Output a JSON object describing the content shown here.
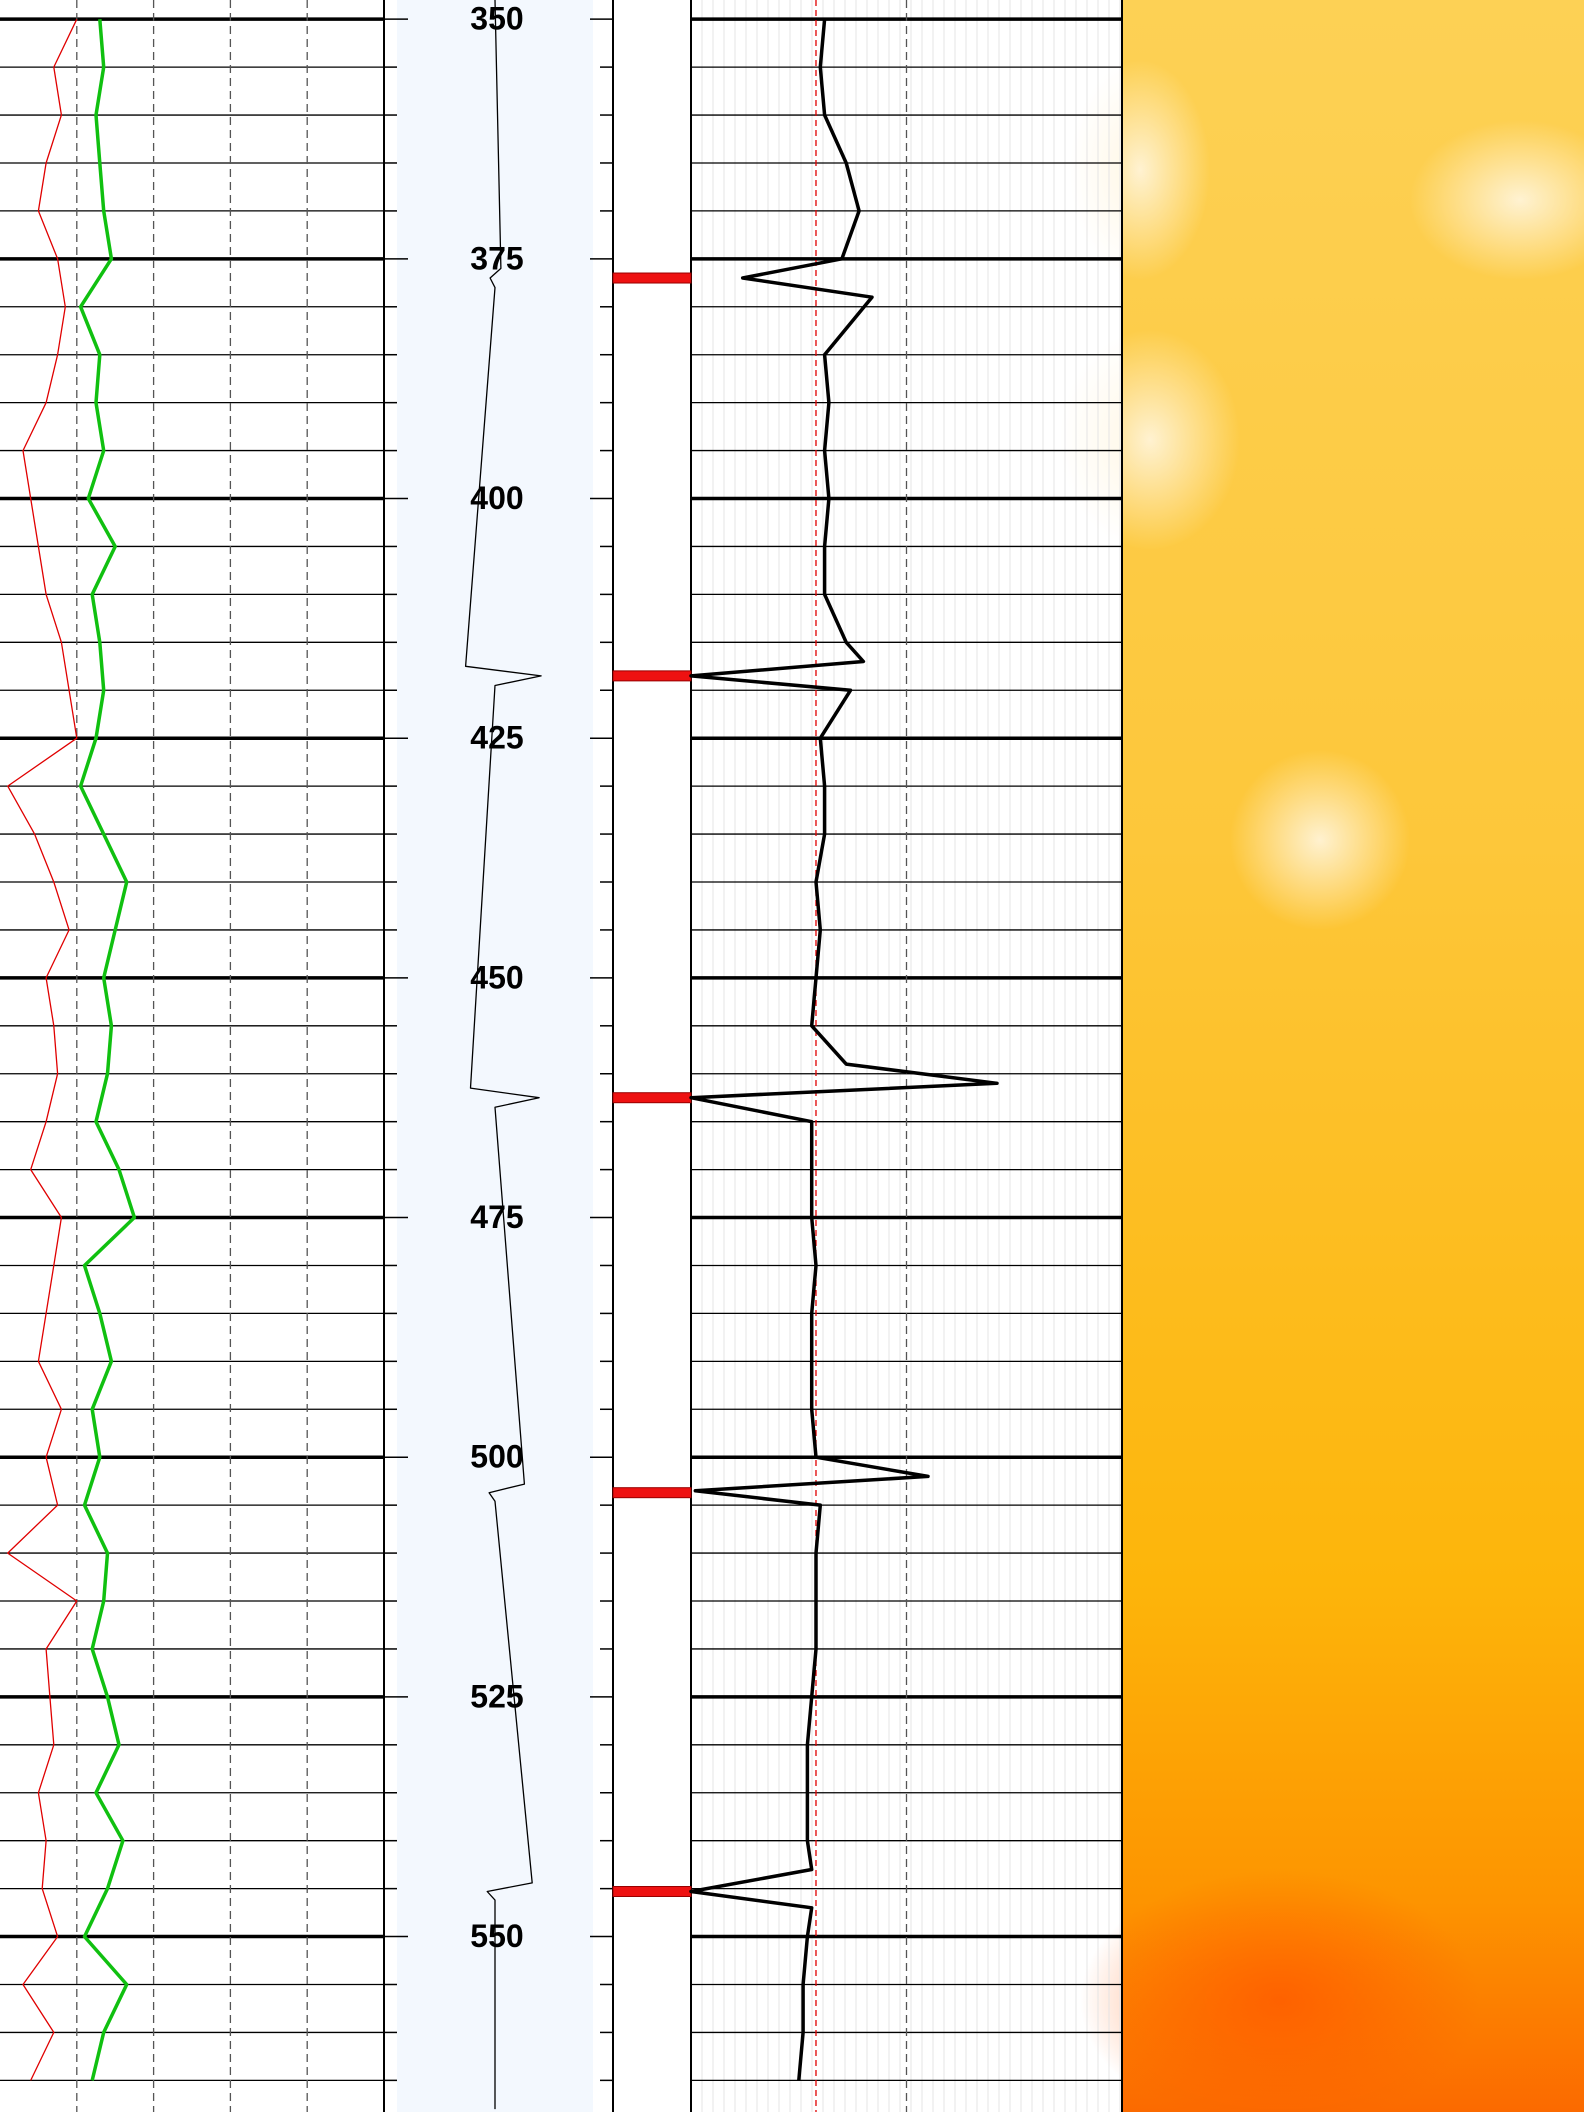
{
  "chart_data": {
    "type": "welllog",
    "ylim": [
      348,
      568.3
    ],
    "yticks": [
      350,
      375,
      400,
      425,
      450,
      475,
      500,
      525,
      550
    ],
    "yminor": [
      355,
      360,
      365,
      370,
      380,
      385,
      390,
      395,
      405,
      410,
      415,
      420,
      430,
      435,
      440,
      445,
      455,
      460,
      465,
      470,
      480,
      485,
      490,
      495,
      505,
      510,
      515,
      520,
      530,
      535,
      540,
      545,
      555,
      560,
      565
    ],
    "tracks": [
      {
        "xlim": [
          0,
          100
        ],
        "xticks": [
          20,
          40,
          60,
          80
        ],
        "series": [
          {
            "color": "#e00000",
            "depth": [
              350,
              355,
              360,
              365,
              370,
              375,
              380,
              385,
              390,
              395,
              400,
              405,
              410,
              415,
              420,
              425,
              430,
              435,
              440,
              445,
              450,
              455,
              460,
              465,
              470,
              475,
              480,
              485,
              490,
              495,
              500,
              505,
              510,
              515,
              520,
              525,
              530,
              535,
              540,
              545,
              550,
              555,
              560,
              565
            ],
            "values": [
              20,
              14,
              16,
              12,
              10,
              15,
              17,
              15,
              12,
              6,
              8,
              10,
              12,
              16,
              18,
              20,
              2,
              9,
              14,
              18,
              12,
              14,
              15,
              12,
              8,
              16,
              14,
              12,
              10,
              16,
              12,
              15,
              2,
              20,
              12,
              13,
              14,
              10,
              12,
              11,
              15,
              6,
              14,
              8
            ]
          },
          {
            "color": "#10c010",
            "depth": [
              350,
              355,
              360,
              365,
              370,
              375,
              380,
              385,
              390,
              395,
              400,
              405,
              410,
              415,
              420,
              425,
              430,
              435,
              440,
              445,
              450,
              455,
              460,
              465,
              470,
              475,
              480,
              485,
              490,
              495,
              500,
              505,
              510,
              515,
              520,
              525,
              530,
              535,
              540,
              545,
              550,
              555,
              560,
              565
            ],
            "values": [
              26,
              27,
              25,
              26,
              27,
              29,
              21,
              26,
              25,
              27,
              23,
              30,
              24,
              26,
              27,
              25,
              21,
              27,
              33,
              30,
              27,
              29,
              28,
              25,
              31,
              35,
              22,
              26,
              29,
              24,
              26,
              22,
              28,
              27,
              24,
              28,
              31,
              25,
              32,
              28,
              22,
              33,
              27,
              24
            ]
          }
        ]
      },
      {
        "xlim": [
          -100,
          100
        ],
        "series": [
          {
            "color": "#000000",
            "depth": [
              348,
              376,
              377,
              378,
              417.5,
              418.5,
              419.5,
              461.5,
              462.5,
              463.5,
              502.8,
              503.7,
              504.6,
              544.4,
              545.3,
              546.2,
              568
            ],
            "values": [
              0,
              6,
              -5,
              0,
              -30,
              47,
              0,
              -25,
              45,
              0,
              30,
              -6,
              0,
              38,
              -8,
              0,
              0
            ]
          }
        ]
      },
      {
        "markers": [
          377,
          418.5,
          462.5,
          503.7,
          545.3
        ],
        "color": "#ee1111"
      },
      {
        "xlim": [
          0,
          100
        ],
        "xticks": [
          50
        ],
        "reference": 29,
        "series": [
          {
            "color": "#000000",
            "depth": [
              350,
              355,
              360,
              365,
              370,
              375,
              377,
              379,
              385,
              390,
              395,
              400,
              405,
              410,
              415,
              417,
              418.5,
              420,
              425,
              430,
              435,
              440,
              445,
              450,
              455,
              459,
              461,
              462.5,
              465,
              470,
              475,
              480,
              485,
              490,
              495,
              500,
              502,
              503.5,
              505,
              510,
              515,
              520,
              525,
              530,
              535,
              540,
              543,
              545.3,
              547,
              550,
              555,
              560,
              565
            ],
            "values": [
              31,
              30,
              31,
              36,
              39,
              35,
              12,
              42,
              31,
              32,
              31,
              32,
              31,
              31,
              36,
              40,
              0,
              37,
              30,
              31,
              31,
              29,
              30,
              29,
              28,
              36,
              71,
              0,
              28,
              28,
              28,
              29,
              28,
              28,
              28,
              29,
              55,
              1,
              30,
              29,
              29,
              29,
              28,
              27,
              27,
              27,
              28,
              0,
              28,
              27,
              26,
              26,
              25
            ]
          }
        ]
      }
    ]
  }
}
